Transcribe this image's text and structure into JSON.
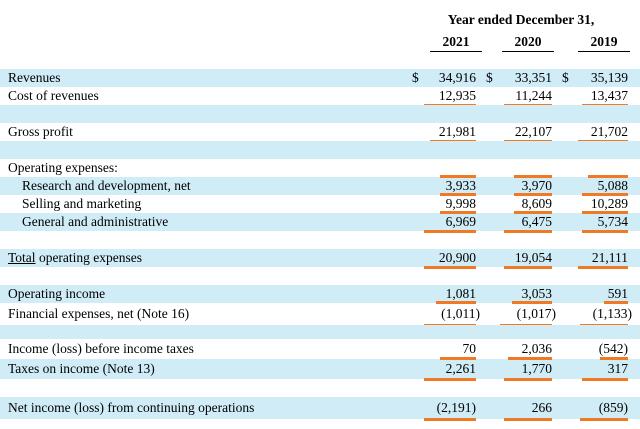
{
  "header": {
    "period_title": "Year ended December 31,",
    "years": [
      "2021",
      "2020",
      "2019"
    ]
  },
  "rows": [
    {
      "label": "Revenues",
      "values": [
        "34,916",
        "33,351",
        "35,139"
      ],
      "currency": "$"
    },
    {
      "label": "Cost of revenues",
      "values": [
        "12,935",
        "11,244",
        "13,437"
      ]
    },
    {
      "label": "Gross profit",
      "values": [
        "21,981",
        "22,107",
        "21,702"
      ]
    },
    {
      "label": "Operating expenses:",
      "values": []
    },
    {
      "label": "Research and development, net",
      "values": [
        "3,933",
        "3,970",
        "5,088"
      ]
    },
    {
      "label": "Selling and marketing",
      "values": [
        "9,998",
        "8,609",
        "10,289"
      ]
    },
    {
      "label": "General and administrative",
      "values": [
        "6,969",
        "6,475",
        "5,734"
      ]
    },
    {
      "label_prefix": "Total",
      "label": " operating expenses",
      "values": [
        "20,900",
        "19,054",
        "21,111"
      ]
    },
    {
      "label": "Operating income",
      "values": [
        "1,081",
        "3,053",
        "591"
      ]
    },
    {
      "label": "Financial expenses, net (Note 16)",
      "values": [
        "(1,011)",
        "(1,017)",
        "(1,133)"
      ]
    },
    {
      "label": "Income (loss) before income taxes",
      "values": [
        "70",
        "2,036",
        "(542)"
      ]
    },
    {
      "label": "Taxes on income (Note 13)",
      "values": [
        "2,261",
        "1,770",
        "317"
      ]
    },
    {
      "label": "Net income (loss) from continuing operations",
      "values": [
        "(2,191)",
        "266",
        "(859)"
      ]
    }
  ],
  "colors": {
    "row_highlight": "#cfecf7",
    "underline_accent": "#f07a23"
  }
}
